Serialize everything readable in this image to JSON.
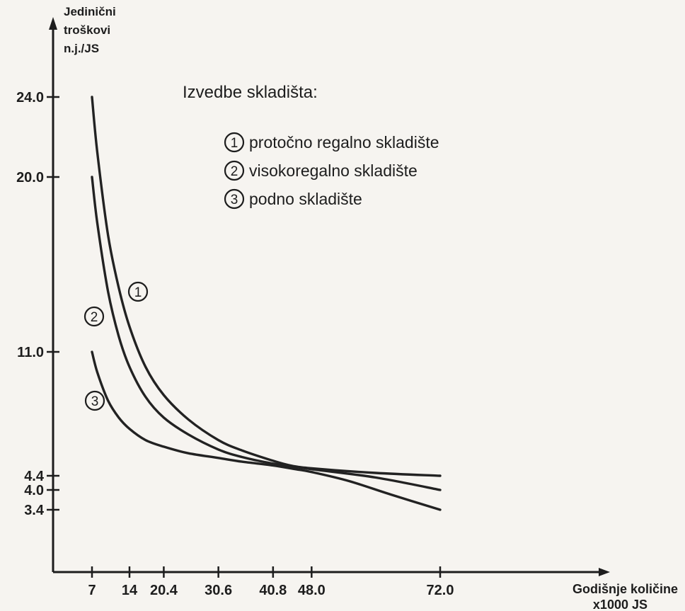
{
  "chart_data": {
    "type": "line",
    "ylabel_lines": [
      "Jedinični",
      "troškovi",
      "n.j./JS"
    ],
    "xlabel_lines": [
      "Godišnje količine",
      "x1000 JS"
    ],
    "x_ticks": [
      {
        "value": 7,
        "label": "7"
      },
      {
        "value": 14,
        "label": "14"
      },
      {
        "value": 20.4,
        "label": "20.4"
      },
      {
        "value": 30.6,
        "label": "30.6"
      },
      {
        "value": 40.8,
        "label": "40.8"
      },
      {
        "value": 48.0,
        "label": "48.0"
      },
      {
        "value": 72.0,
        "label": "72.0"
      }
    ],
    "y_ticks": [
      {
        "value": 3.4,
        "label": "3.4"
      },
      {
        "value": 4.0,
        "label": "4.0"
      },
      {
        "value": 4.4,
        "label": "4.4"
      },
      {
        "value": 11.0,
        "label": "11.0"
      },
      {
        "value": 20.0,
        "label": "20.0"
      },
      {
        "value": 24.0,
        "label": "24.0"
      }
    ],
    "legend_title": "Izvedbe skladišta:",
    "series": [
      {
        "name": "protočno regalno skladište",
        "marker": "1",
        "points": [
          [
            7,
            24.0
          ],
          [
            8,
            21.2
          ],
          [
            10,
            17.0
          ],
          [
            12,
            14.3
          ],
          [
            14,
            12.3
          ],
          [
            17,
            10.2
          ],
          [
            20.4,
            8.7
          ],
          [
            25,
            7.4
          ],
          [
            30.6,
            6.3
          ],
          [
            35,
            5.75
          ],
          [
            40.8,
            5.2
          ],
          [
            44,
            4.95
          ],
          [
            48,
            4.8
          ],
          [
            60,
            4.55
          ],
          [
            72,
            4.4
          ]
        ]
      },
      {
        "name": "visokoregalno skladište",
        "marker": "2",
        "points": [
          [
            7,
            20.0
          ],
          [
            8,
            17.6
          ],
          [
            10,
            14.1
          ],
          [
            12,
            11.8
          ],
          [
            14,
            10.2
          ],
          [
            17,
            8.6
          ],
          [
            20.4,
            7.5
          ],
          [
            25,
            6.6
          ],
          [
            30.6,
            5.8
          ],
          [
            35,
            5.4
          ],
          [
            40.8,
            5.05
          ],
          [
            48,
            4.75
          ],
          [
            60,
            4.35
          ],
          [
            72,
            4.0
          ]
        ]
      },
      {
        "name": "podno skladište",
        "marker": "3",
        "points": [
          [
            7,
            11.0
          ],
          [
            8,
            9.9
          ],
          [
            10,
            8.4
          ],
          [
            12,
            7.5
          ],
          [
            14,
            6.9
          ],
          [
            17,
            6.3
          ],
          [
            20.4,
            5.95
          ],
          [
            25,
            5.6
          ],
          [
            30.6,
            5.35
          ],
          [
            35,
            5.15
          ],
          [
            40.8,
            4.95
          ],
          [
            45,
            4.75
          ],
          [
            48,
            4.6
          ],
          [
            55,
            4.25
          ],
          [
            63,
            3.85
          ],
          [
            72,
            3.4
          ]
        ]
      }
    ]
  }
}
